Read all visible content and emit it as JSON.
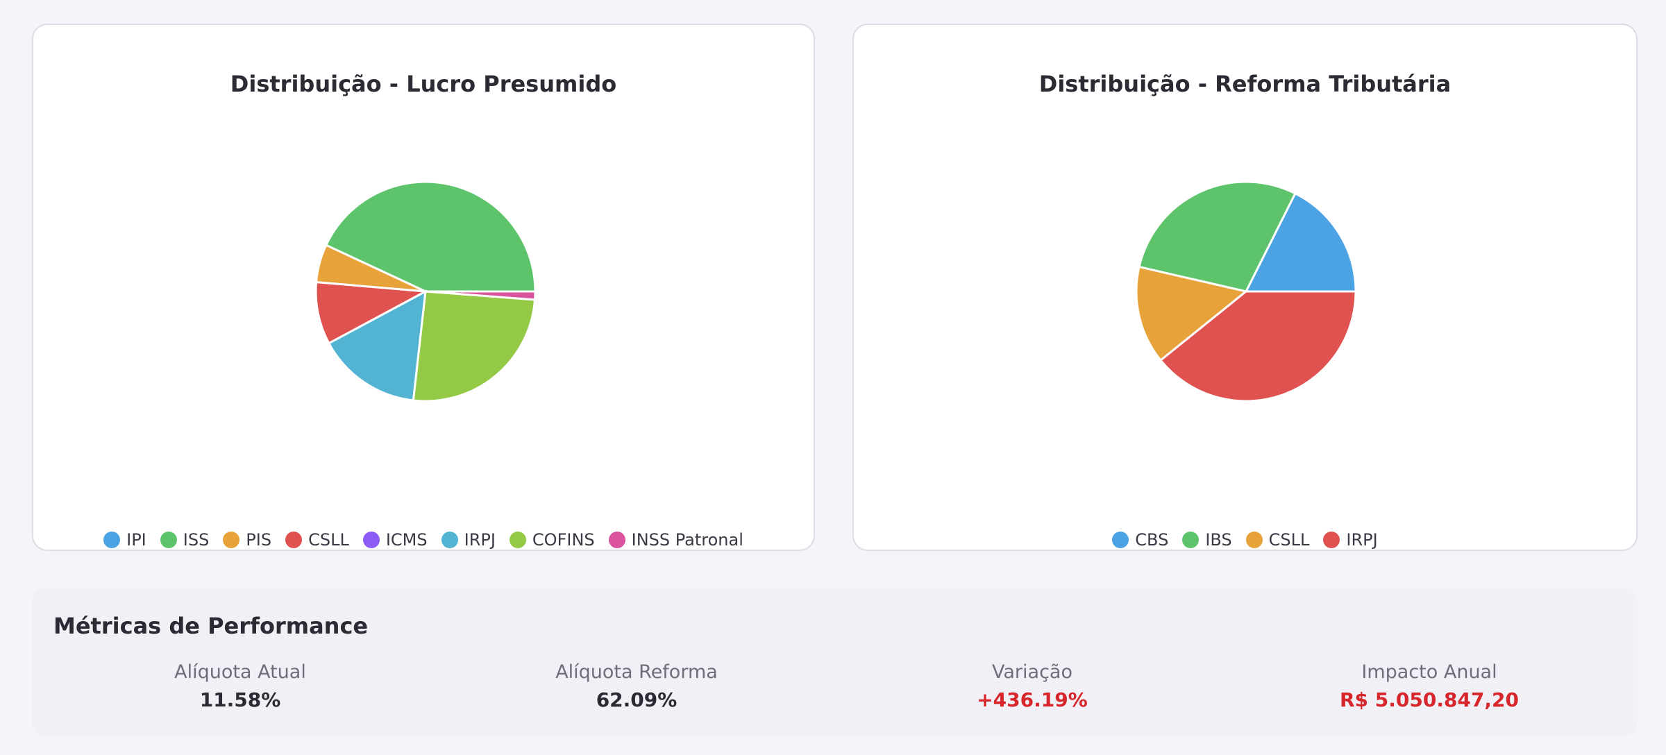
{
  "chart_data": [
    {
      "type": "pie",
      "title": "Distribuição - Lucro Presumido",
      "categories": [
        "IPI",
        "ISS",
        "PIS",
        "CSLL",
        "ICMS",
        "IRPJ",
        "COFINS",
        "INSS Patronal"
      ],
      "values": [
        0,
        43.1,
        5.6,
        9.2,
        0,
        15.4,
        25.6,
        1.2
      ],
      "colors": [
        "#4ca3e3",
        "#5ec46c",
        "#e8a23a",
        "#e0524f",
        "#8b5cf6",
        "#52b3d3",
        "#93c945",
        "#d9539f"
      ]
    },
    {
      "type": "pie",
      "title": "Distribuição - Reforma Tributária",
      "categories": [
        "CBS",
        "IBS",
        "CSLL",
        "IRPJ"
      ],
      "values": [
        17.6,
        28.8,
        14.4,
        39.2
      ],
      "colors": [
        "#4ca3e3",
        "#5ec46c",
        "#e8a23a",
        "#e0524f"
      ]
    }
  ],
  "metrics": {
    "title": "Métricas de Performance",
    "items": [
      {
        "label": "Alíquota Atual",
        "value": "11.58%"
      },
      {
        "label": "Alíquota Reforma",
        "value": "62.09%"
      },
      {
        "label": "Variação",
        "value": "+436.19%"
      },
      {
        "label": "Impacto Anual",
        "value": "R$ 5.050.847,20"
      }
    ]
  }
}
